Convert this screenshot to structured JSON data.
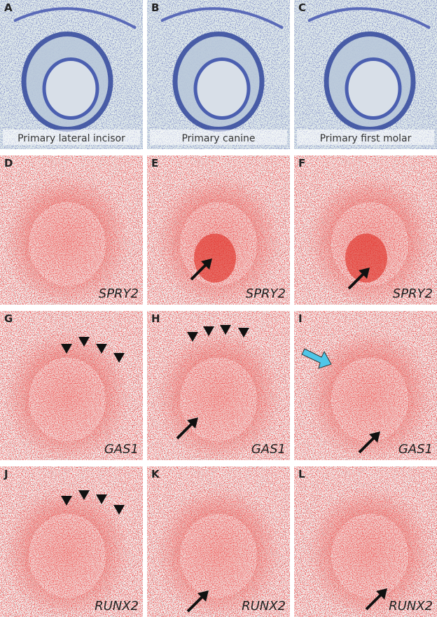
{
  "panels": [
    {
      "letter": "A",
      "label": "Primary lateral incisor"
    },
    {
      "letter": "B",
      "label": "Primary canine"
    },
    {
      "letter": "C",
      "label": "Primary first molar"
    },
    {
      "letter": "D",
      "label": "SPRY2"
    },
    {
      "letter": "E",
      "label": "SPRY2"
    },
    {
      "letter": "F",
      "label": "SPRY2"
    },
    {
      "letter": "G",
      "label": "GAS1"
    },
    {
      "letter": "H",
      "label": "GAS1"
    },
    {
      "letter": "I",
      "label": "GAS1"
    },
    {
      "letter": "J",
      "label": "RUNX2"
    },
    {
      "letter": "K",
      "label": "RUNX2"
    },
    {
      "letter": "L",
      "label": "RUNX2"
    }
  ]
}
